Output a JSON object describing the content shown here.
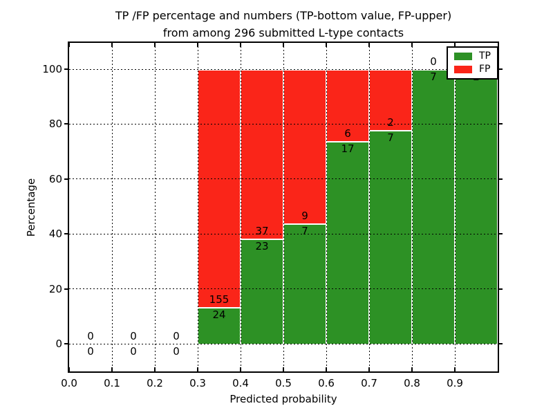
{
  "chart_data": {
    "type": "bar",
    "stacked": true,
    "normalized_to_percent": true,
    "title": "TP /FP percentage and numbers (TP-bottom value, FP-upper) from among 296 submitted L-type contacts",
    "title_line1": "TP /FP percentage and numbers (TP-bottom value, FP-upper)",
    "title_line2": "from among 296 submitted L-type contacts",
    "xlabel": "Predicted probability",
    "ylabel": "Percentage",
    "xlim": [
      0.0,
      1.0
    ],
    "ylim": [
      -10,
      110
    ],
    "x_tick_labels": [
      "0.0",
      "0.1",
      "0.2",
      "0.3",
      "0.4",
      "0.5",
      "0.6",
      "0.7",
      "0.8",
      "0.9"
    ],
    "y_tick_values": [
      0,
      20,
      40,
      60,
      80,
      100
    ],
    "grid": "dotted",
    "legend_position": "upper-right",
    "total_submitted": 296,
    "bin_width": 0.1,
    "categories": [
      "0.0-0.1",
      "0.1-0.2",
      "0.2-0.3",
      "0.3-0.4",
      "0.4-0.5",
      "0.5-0.6",
      "0.6-0.7",
      "0.7-0.8",
      "0.8-0.9",
      "0.9-1.0"
    ],
    "series": [
      {
        "name": "TP",
        "color": "#2d9125",
        "counts": [
          0,
          0,
          0,
          24,
          23,
          7,
          17,
          7,
          7,
          2
        ]
      },
      {
        "name": "FP",
        "color": "#fa2519",
        "counts": [
          0,
          0,
          0,
          155,
          37,
          9,
          6,
          2,
          0,
          0
        ]
      }
    ],
    "tp_percent_of_bin": [
      null,
      null,
      null,
      13.4,
      38.3,
      43.8,
      73.9,
      77.8,
      100.0,
      100.0
    ],
    "colors": {
      "tp": "#2d9125",
      "fp": "#fa2519",
      "axis": "#000000",
      "background": "#ffffff"
    }
  }
}
